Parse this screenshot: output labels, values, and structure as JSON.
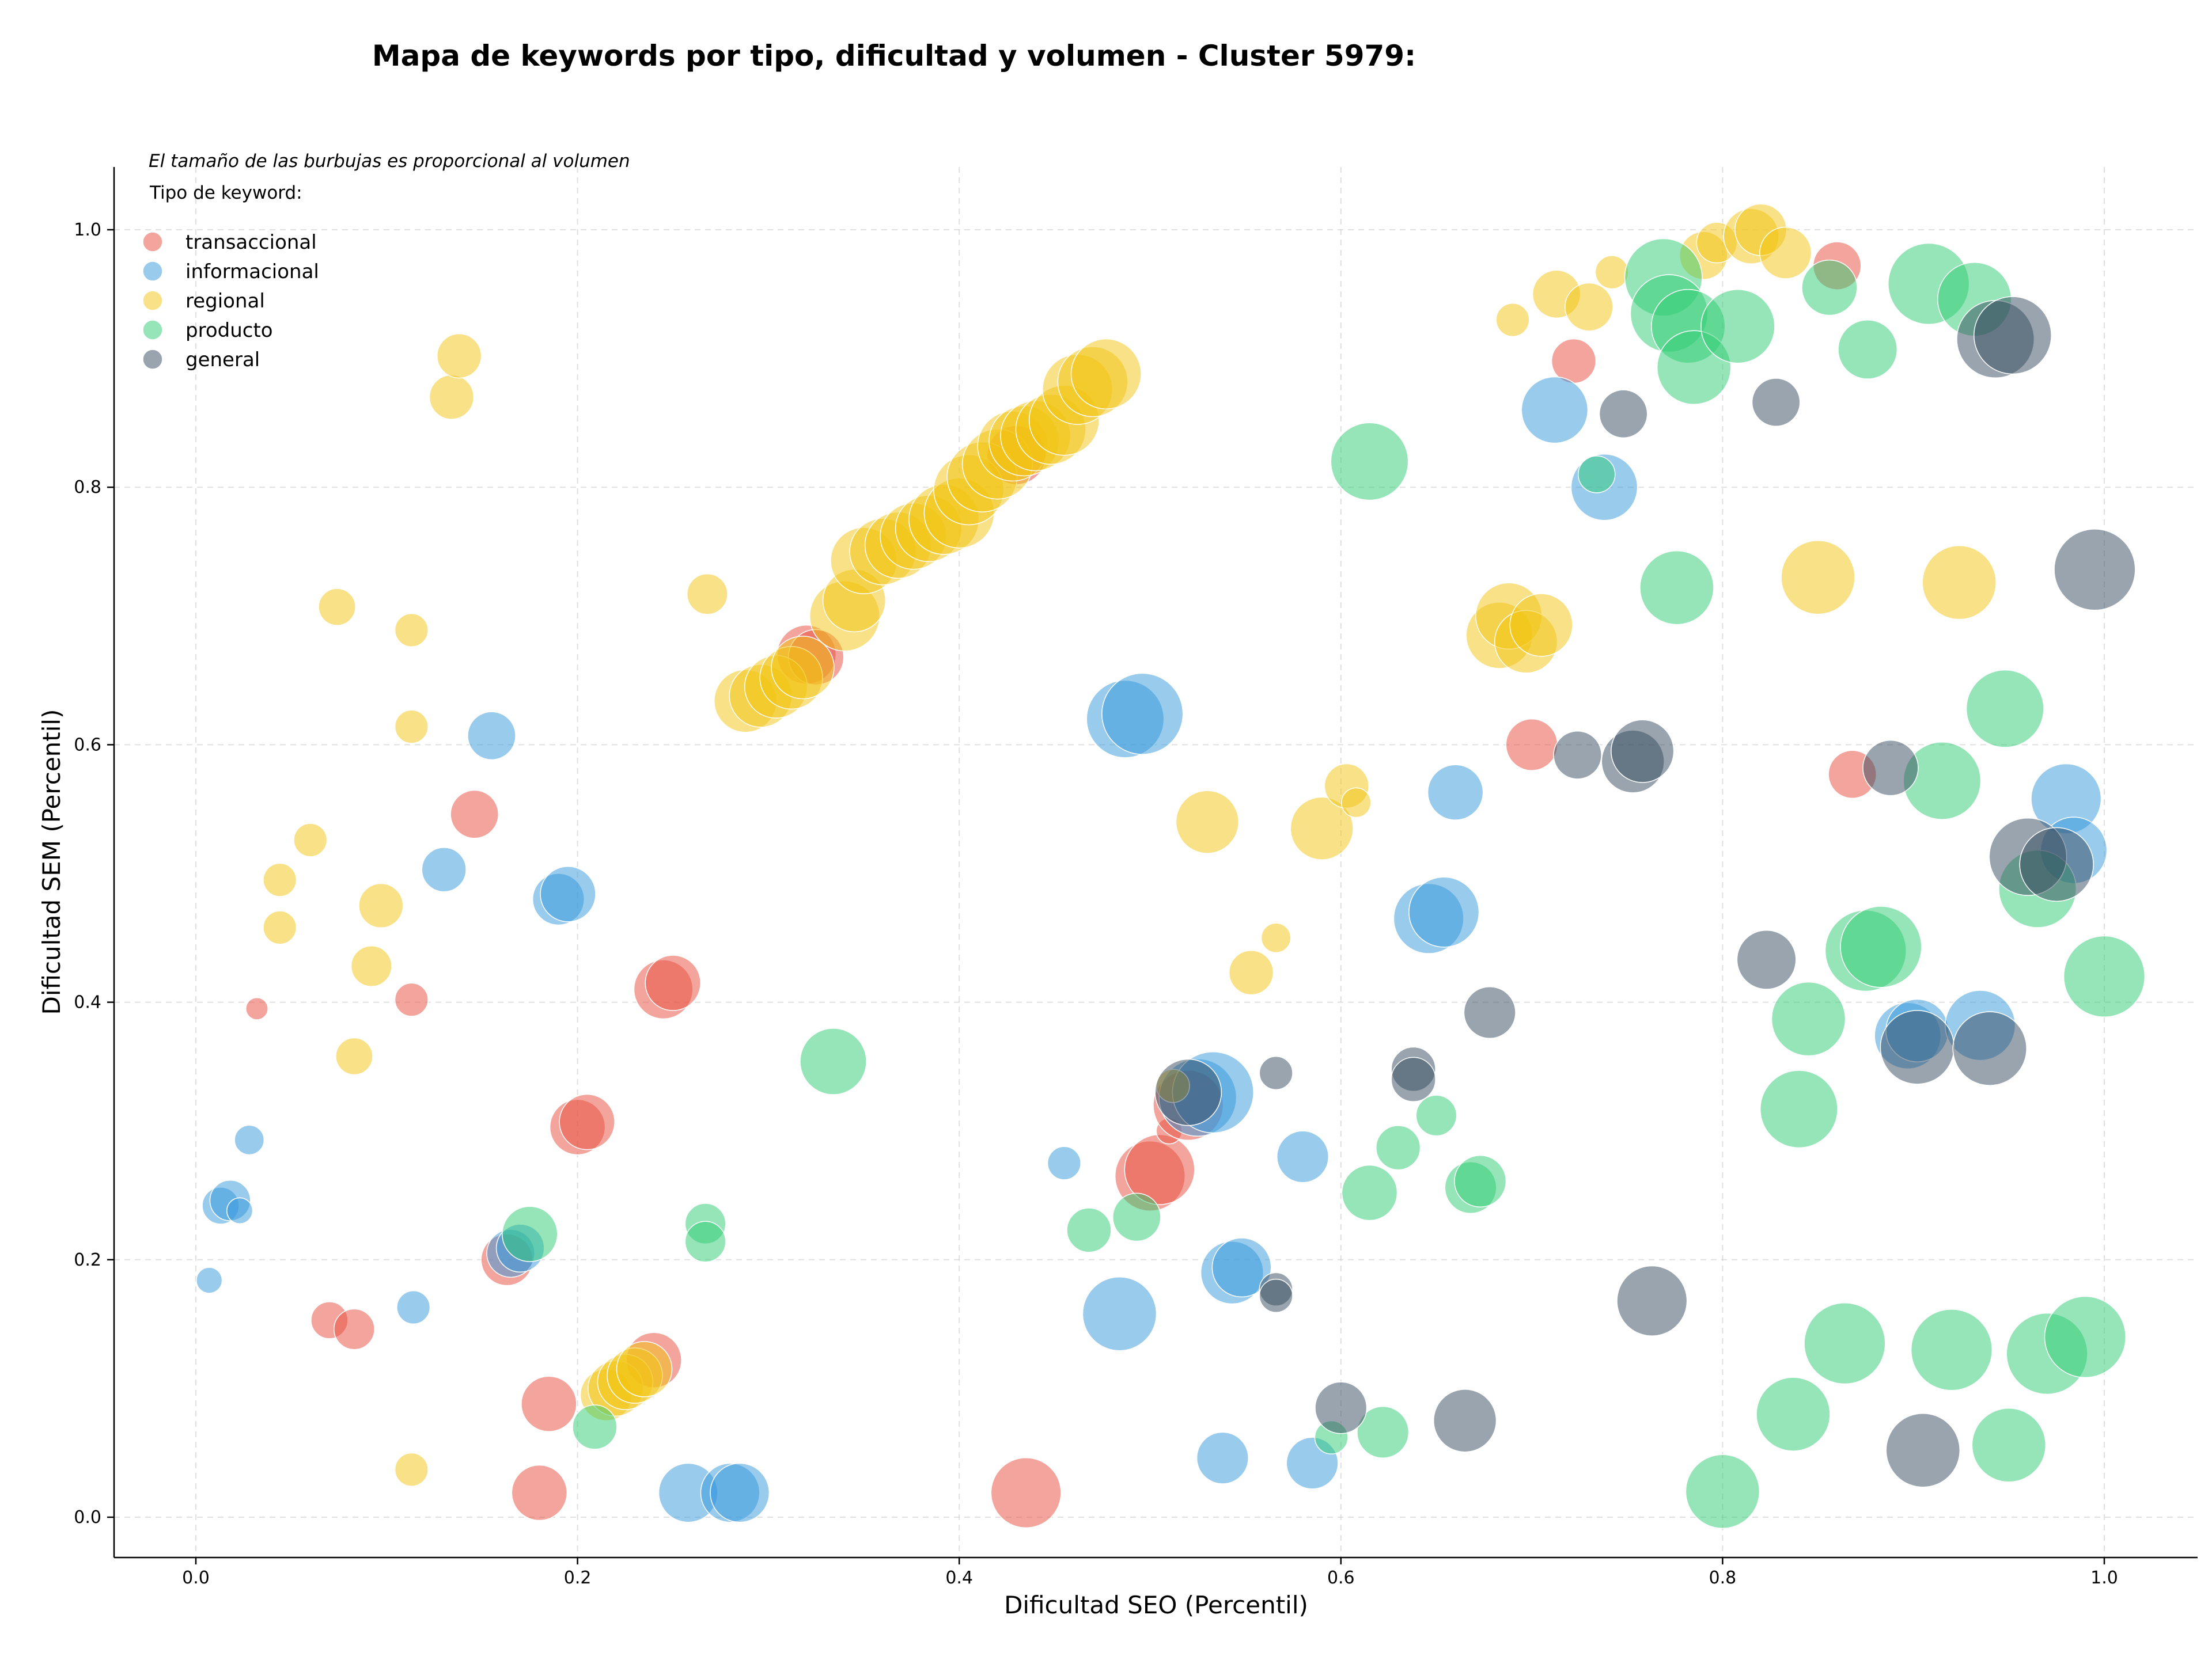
{
  "chart_data": {
    "type": "scatter",
    "title": "Mapa de keywords por tipo, dificultad y volumen - Cluster 5979:",
    "xlabel": "Dificultad SEO (Percentil)",
    "ylabel": "Dificultad SEM (Percentil)",
    "xlim": [
      -0.04,
      1.05
    ],
    "ylim": [
      -0.03,
      1.05
    ],
    "xticks": [
      "0.0",
      "0.2",
      "0.4",
      "0.6",
      "0.8",
      "1.0"
    ],
    "yticks": [
      "0.0",
      "0.2",
      "0.4",
      "0.6",
      "0.8",
      "1.0"
    ],
    "grid": true,
    "annotation": "El tamaño de las burbujas es proporcional al volumen",
    "legend": {
      "title": "Tipo de keyword:",
      "placement": "top-left"
    },
    "series": [
      {
        "name": "transaccional",
        "color": "#e74c3c",
        "points": [
          [
            0.032,
            0.395,
            6
          ],
          [
            0.07,
            0.153,
            10
          ],
          [
            0.083,
            0.146,
            11
          ],
          [
            0.113,
            0.402,
            9
          ],
          [
            0.146,
            0.546,
            13
          ],
          [
            0.163,
            0.2,
            14
          ],
          [
            0.185,
            0.088,
            15
          ],
          [
            0.18,
            0.019,
            15
          ],
          [
            0.2,
            0.303,
            15
          ],
          [
            0.205,
            0.307,
            15
          ],
          [
            0.245,
            0.41,
            16
          ],
          [
            0.25,
            0.415,
            15
          ],
          [
            0.24,
            0.122,
            15
          ],
          [
            0.32,
            0.67,
            16
          ],
          [
            0.325,
            0.668,
            15
          ],
          [
            0.43,
            0.825,
            16
          ],
          [
            0.435,
            0.019,
            19
          ],
          [
            0.5,
            0.265,
            19
          ],
          [
            0.505,
            0.27,
            19
          ],
          [
            0.51,
            0.3,
            7
          ],
          [
            0.52,
            0.32,
            19
          ],
          [
            0.7,
            0.6,
            14
          ],
          [
            0.722,
            0.898,
            12
          ],
          [
            0.86,
            0.972,
            13
          ],
          [
            0.868,
            0.577,
            13
          ]
        ]
      },
      {
        "name": "informacional",
        "color": "#3498db",
        "points": [
          [
            0.007,
            0.184,
            7
          ],
          [
            0.013,
            0.242,
            10
          ],
          [
            0.018,
            0.246,
            11
          ],
          [
            0.023,
            0.238,
            7
          ],
          [
            0.028,
            0.293,
            8
          ],
          [
            0.114,
            0.163,
            9
          ],
          [
            0.13,
            0.503,
            12
          ],
          [
            0.155,
            0.607,
            13
          ],
          [
            0.165,
            0.205,
            13
          ],
          [
            0.17,
            0.209,
            13
          ],
          [
            0.19,
            0.48,
            14
          ],
          [
            0.195,
            0.484,
            15
          ],
          [
            0.258,
            0.019,
            16
          ],
          [
            0.28,
            0.019,
            16
          ],
          [
            0.285,
            0.019,
            16
          ],
          [
            0.455,
            0.275,
            9
          ],
          [
            0.484,
            0.158,
            20
          ],
          [
            0.487,
            0.62,
            21
          ],
          [
            0.496,
            0.624,
            22
          ],
          [
            0.525,
            0.326,
            21
          ],
          [
            0.533,
            0.33,
            22
          ],
          [
            0.538,
            0.046,
            14
          ],
          [
            0.543,
            0.19,
            17
          ],
          [
            0.548,
            0.194,
            16
          ],
          [
            0.58,
            0.28,
            14
          ],
          [
            0.585,
            0.042,
            14
          ],
          [
            0.646,
            0.465,
            19
          ],
          [
            0.654,
            0.47,
            19
          ],
          [
            0.66,
            0.563,
            15
          ],
          [
            0.712,
            0.86,
            18
          ],
          [
            0.738,
            0.8,
            18
          ],
          [
            0.897,
            0.374,
            18
          ],
          [
            0.902,
            0.378,
            17
          ],
          [
            0.935,
            0.382,
            19
          ],
          [
            0.98,
            0.558,
            19
          ],
          [
            0.984,
            0.518,
            18
          ]
        ]
      },
      {
        "name": "regional",
        "color": "#f1c40f",
        "points": [
          [
            0.044,
            0.495,
            9
          ],
          [
            0.044,
            0.458,
            9
          ],
          [
            0.06,
            0.526,
            9
          ],
          [
            0.074,
            0.707,
            10
          ],
          [
            0.083,
            0.358,
            10
          ],
          [
            0.092,
            0.428,
            11
          ],
          [
            0.097,
            0.475,
            12
          ],
          [
            0.113,
            0.689,
            9
          ],
          [
            0.113,
            0.614,
            9
          ],
          [
            0.113,
            0.037,
            9
          ],
          [
            0.134,
            0.87,
            12
          ],
          [
            0.138,
            0.902,
            12
          ],
          [
            0.215,
            0.095,
            14
          ],
          [
            0.22,
            0.1,
            15
          ],
          [
            0.225,
            0.105,
            15
          ],
          [
            0.23,
            0.11,
            15
          ],
          [
            0.235,
            0.115,
            15
          ],
          [
            0.268,
            0.717,
            11
          ],
          [
            0.288,
            0.634,
            17
          ],
          [
            0.296,
            0.638,
            17
          ],
          [
            0.304,
            0.645,
            17
          ],
          [
            0.312,
            0.652,
            17
          ],
          [
            0.318,
            0.66,
            17
          ],
          [
            0.34,
            0.7,
            19
          ],
          [
            0.345,
            0.712,
            17
          ],
          [
            0.35,
            0.743,
            18
          ],
          [
            0.36,
            0.75,
            18
          ],
          [
            0.368,
            0.755,
            18
          ],
          [
            0.376,
            0.762,
            18
          ],
          [
            0.384,
            0.768,
            18
          ],
          [
            0.392,
            0.775,
            19
          ],
          [
            0.4,
            0.78,
            19
          ],
          [
            0.405,
            0.798,
            19
          ],
          [
            0.412,
            0.808,
            19
          ],
          [
            0.42,
            0.818,
            19
          ],
          [
            0.428,
            0.832,
            19
          ],
          [
            0.434,
            0.836,
            19
          ],
          [
            0.44,
            0.84,
            19
          ],
          [
            0.448,
            0.845,
            19
          ],
          [
            0.455,
            0.852,
            19
          ],
          [
            0.462,
            0.876,
            19
          ],
          [
            0.47,
            0.882,
            19
          ],
          [
            0.477,
            0.888,
            19
          ],
          [
            0.512,
            0.335,
            9
          ],
          [
            0.53,
            0.54,
            17
          ],
          [
            0.553,
            0.423,
            12
          ],
          [
            0.566,
            0.45,
            8
          ],
          [
            0.59,
            0.535,
            17
          ],
          [
            0.603,
            0.568,
            12
          ],
          [
            0.608,
            0.555,
            8
          ],
          [
            0.683,
            0.685,
            18
          ],
          [
            0.688,
            0.7,
            18
          ],
          [
            0.697,
            0.68,
            17
          ],
          [
            0.705,
            0.693,
            17
          ],
          [
            0.69,
            0.93,
            9
          ],
          [
            0.713,
            0.95,
            13
          ],
          [
            0.73,
            0.94,
            13
          ],
          [
            0.742,
            0.967,
            9
          ],
          [
            0.79,
            0.98,
            13
          ],
          [
            0.797,
            0.99,
            11
          ],
          [
            0.815,
            0.995,
            15
          ],
          [
            0.82,
            1.0,
            14
          ],
          [
            0.833,
            0.982,
            14
          ],
          [
            0.85,
            0.73,
            20
          ],
          [
            0.924,
            0.726,
            20
          ]
        ]
      },
      {
        "name": "producto",
        "color": "#2ecc71",
        "points": [
          [
            0.175,
            0.22,
            15
          ],
          [
            0.209,
            0.07,
            12
          ],
          [
            0.267,
            0.228,
            11
          ],
          [
            0.267,
            0.214,
            11
          ],
          [
            0.334,
            0.354,
            18
          ],
          [
            0.468,
            0.223,
            12
          ],
          [
            0.493,
            0.233,
            13
          ],
          [
            0.595,
            0.062,
            9
          ],
          [
            0.615,
            0.82,
            21
          ],
          [
            0.615,
            0.252,
            15
          ],
          [
            0.622,
            0.066,
            14
          ],
          [
            0.63,
            0.287,
            12
          ],
          [
            0.65,
            0.312,
            11
          ],
          [
            0.668,
            0.256,
            14
          ],
          [
            0.673,
            0.261,
            14
          ],
          [
            0.734,
            0.81,
            10
          ],
          [
            0.769,
            0.963,
            21
          ],
          [
            0.772,
            0.935,
            21
          ],
          [
            0.776,
            0.722,
            20
          ],
          [
            0.782,
            0.925,
            20
          ],
          [
            0.785,
            0.893,
            20
          ],
          [
            0.808,
            0.925,
            20
          ],
          [
            0.8,
            0.02,
            20
          ],
          [
            0.837,
            0.08,
            20
          ],
          [
            0.84,
            0.317,
            21
          ],
          [
            0.845,
            0.387,
            20
          ],
          [
            0.856,
            0.955,
            15
          ],
          [
            0.864,
            0.135,
            22
          ],
          [
            0.876,
            0.907,
            16
          ],
          [
            0.875,
            0.44,
            22
          ],
          [
            0.883,
            0.443,
            22
          ],
          [
            0.908,
            0.958,
            22
          ],
          [
            0.915,
            0.572,
            21
          ],
          [
            0.92,
            0.13,
            22
          ],
          [
            0.932,
            0.946,
            20
          ],
          [
            0.948,
            0.628,
            21
          ],
          [
            0.95,
            0.056,
            20
          ],
          [
            0.965,
            0.488,
            21
          ],
          [
            0.97,
            0.127,
            22
          ],
          [
            0.99,
            0.14,
            22
          ],
          [
            1.0,
            0.42,
            22
          ]
        ]
      },
      {
        "name": "general",
        "color": "#34495e",
        "points": [
          [
            0.52,
            0.33,
            18
          ],
          [
            0.566,
            0.345,
            9
          ],
          [
            0.566,
            0.177,
            9
          ],
          [
            0.566,
            0.172,
            9
          ],
          [
            0.6,
            0.085,
            14
          ],
          [
            0.638,
            0.348,
            12
          ],
          [
            0.638,
            0.34,
            12
          ],
          [
            0.665,
            0.075,
            17
          ],
          [
            0.678,
            0.392,
            14
          ],
          [
            0.724,
            0.592,
            13
          ],
          [
            0.748,
            0.857,
            13
          ],
          [
            0.753,
            0.587,
            17
          ],
          [
            0.758,
            0.595,
            17
          ],
          [
            0.763,
            0.168,
            19
          ],
          [
            0.828,
            0.866,
            13
          ],
          [
            0.823,
            0.433,
            16
          ],
          [
            0.888,
            0.582,
            15
          ],
          [
            0.905,
            0.052,
            20
          ],
          [
            0.902,
            0.365,
            20
          ],
          [
            0.94,
            0.364,
            20
          ],
          [
            0.943,
            0.915,
            21
          ],
          [
            0.952,
            0.918,
            21
          ],
          [
            0.96,
            0.513,
            21
          ],
          [
            0.975,
            0.507,
            20
          ],
          [
            0.995,
            0.736,
            22
          ]
        ]
      }
    ]
  }
}
